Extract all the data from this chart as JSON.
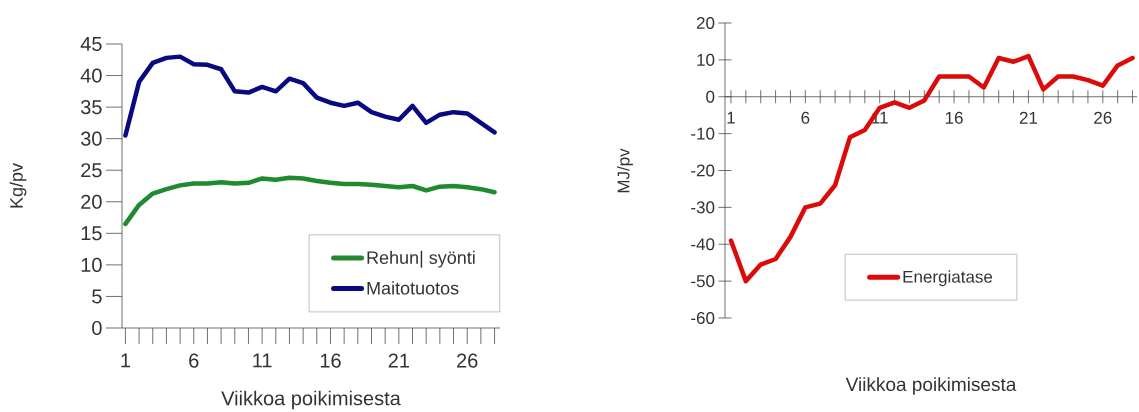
{
  "chart_data": [
    {
      "type": "line",
      "categories": [
        "1",
        null,
        null,
        null,
        null,
        "6",
        null,
        null,
        null,
        null,
        "11",
        null,
        null,
        null,
        null,
        "16",
        null,
        null,
        null,
        null,
        "21",
        null,
        null,
        null,
        null,
        "26",
        null,
        null
      ],
      "series": [
        {
          "name": "Rehun| syönti",
          "color": "#1f8a2e",
          "values": [
            16.5,
            19.5,
            21.3,
            22,
            22.6,
            22.9,
            22.9,
            23.1,
            22.9,
            23,
            23.7,
            23.5,
            23.8,
            23.7,
            23.3,
            23,
            22.8,
            22.8,
            22.7,
            22.5,
            22.3,
            22.5,
            21.8,
            22.4,
            22.5,
            22.3,
            22,
            21.5
          ]
        },
        {
          "name": "Maitotuotos",
          "color": "#0a0a80",
          "values": [
            30.5,
            39,
            42,
            42.8,
            43,
            41.8,
            41.7,
            41,
            37.5,
            37.3,
            38.2,
            37.5,
            39.5,
            38.8,
            36.5,
            35.7,
            35.2,
            35.7,
            34.2,
            33.5,
            33,
            35.2,
            32.5,
            33.8,
            34.2,
            34,
            32.5,
            31
          ]
        }
      ],
      "ylim": [
        0,
        45
      ],
      "yticks": [
        0,
        5,
        10,
        15,
        20,
        25,
        30,
        35,
        40,
        45
      ],
      "ylabel": "Kg/pv",
      "xlabel": "Viikkoa poikimisesta",
      "legend": "bottom right",
      "marker": "none",
      "line_style": "solid"
    },
    {
      "type": "line",
      "categories": [
        "1",
        null,
        null,
        null,
        null,
        "6",
        null,
        null,
        null,
        null,
        "11",
        null,
        null,
        null,
        null,
        "16",
        null,
        null,
        null,
        null,
        "21",
        null,
        null,
        null,
        null,
        "26",
        null,
        null
      ],
      "series": [
        {
          "name": "Energiatase",
          "color": "#dd0a0a",
          "values": [
            -39,
            -50,
            -45.5,
            -44,
            -38,
            -30,
            -29,
            -24,
            -11,
            -9,
            -3,
            -1.5,
            -3,
            -1,
            5.5,
            5.5,
            5.5,
            2.5,
            10.5,
            9.5,
            11,
            2,
            5.5,
            5.5,
            4.5,
            3,
            8.5,
            10.5
          ]
        }
      ],
      "ylim": [
        -60,
        20
      ],
      "yticks": [
        -60,
        -50,
        -40,
        -30,
        -20,
        -10,
        0,
        10,
        20
      ],
      "ylabel": "MJ/pv",
      "xlabel": "Viikkoa poikimisesta",
      "legend": "bottom",
      "marker": "none",
      "line_style": "solid"
    }
  ]
}
